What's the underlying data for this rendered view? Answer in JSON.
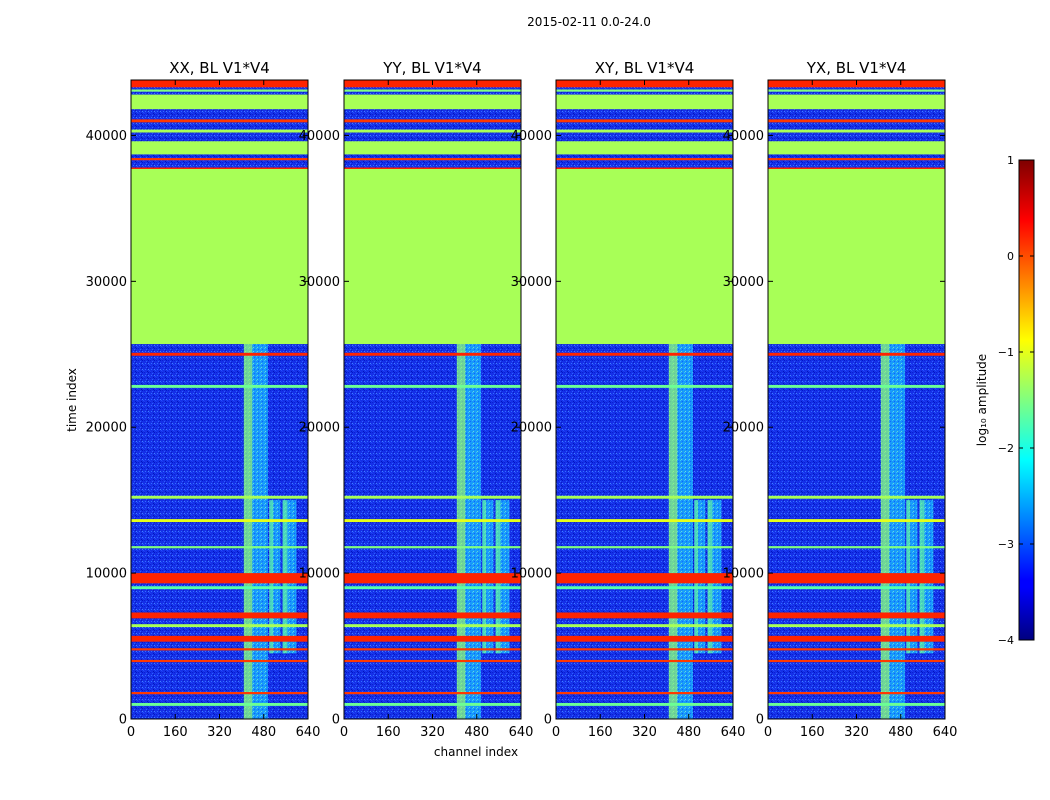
{
  "figure_title": "2015-02-11 0.0-24.0",
  "xlabel": "channel index",
  "ylabel": "time index",
  "colorbar": {
    "label": "log₁₀ amplitude",
    "range": [
      -4,
      1
    ],
    "ticks": [
      1,
      0,
      -1,
      -2,
      -3,
      -4
    ],
    "tick_labels": [
      "1",
      "0",
      "−1",
      "−2",
      "−3",
      "−4"
    ],
    "colormap": "jet"
  },
  "chart_data": {
    "type": "heatmap",
    "title": "2015-02-11 0.0-24.0",
    "xlabel": "channel index",
    "ylabel": "time index",
    "xlim": [
      0,
      640
    ],
    "ylim": [
      0,
      43800
    ],
    "x_ticks": [
      0,
      160,
      320,
      480,
      640
    ],
    "x_tick_labels": [
      "0",
      "160",
      "320",
      "480",
      "640"
    ],
    "y_ticks": [
      0,
      10000,
      20000,
      30000,
      40000
    ],
    "y_tick_labels": [
      "0",
      "10000",
      "20000",
      "30000",
      "40000"
    ],
    "value_label": "log10 amplitude",
    "value_range": [
      -4,
      1
    ],
    "panels": [
      {
        "title": "XX, BL V1*V4",
        "polarization": "XX",
        "baseline": "V1*V4"
      },
      {
        "title": "YY, BL V1*V4",
        "polarization": "YY",
        "baseline": "V1*V4"
      },
      {
        "title": "XY, BL V1*V4",
        "polarization": "XY",
        "baseline": "V1*V4"
      },
      {
        "title": "YX, BL V1*V4",
        "polarization": "YX",
        "baseline": "V1*V4"
      }
    ],
    "background_level": -3.0,
    "flagged_blocks": [
      {
        "t_start": 25700,
        "t_end": 37700,
        "level": -1.3
      },
      {
        "t_start": 38700,
        "t_end": 39600,
        "level": -1.3
      },
      {
        "t_start": 41800,
        "t_end": 42800,
        "level": -1.3
      }
    ],
    "horizontal_bands": [
      {
        "t_start": 9300,
        "t_end": 10000,
        "level": 0.2
      },
      {
        "t_start": 6900,
        "t_end": 7300,
        "level": 0.2
      },
      {
        "t_start": 5300,
        "t_end": 5700,
        "level": 0.2
      },
      {
        "t_start": 43300,
        "t_end": 43800,
        "level": 0.2
      },
      {
        "t_start": 37600,
        "t_end": 37800,
        "level": 0.2
      },
      {
        "t_start": 24900,
        "t_end": 25100,
        "level": 0.2
      },
      {
        "t_start": 22700,
        "t_end": 22900,
        "level": -1.6
      },
      {
        "t_start": 15100,
        "t_end": 15300,
        "level": -1.3
      },
      {
        "t_start": 13500,
        "t_end": 13700,
        "level": -1.0
      },
      {
        "t_start": 11700,
        "t_end": 11850,
        "level": -1.5
      },
      {
        "t_start": 8900,
        "t_end": 9100,
        "level": -1.7
      },
      {
        "t_start": 6300,
        "t_end": 6500,
        "level": -1.3
      },
      {
        "t_start": 4700,
        "t_end": 4850,
        "level": 0.1
      },
      {
        "t_start": 3900,
        "t_end": 4050,
        "level": 0.1
      },
      {
        "t_start": 1700,
        "t_end": 1850,
        "level": 0.1
      },
      {
        "t_start": 900,
        "t_end": 1100,
        "level": -1.6
      },
      {
        "t_start": 40900,
        "t_end": 41100,
        "level": 0.1
      },
      {
        "t_start": 40200,
        "t_end": 40400,
        "level": -1.3
      },
      {
        "t_start": 38300,
        "t_end": 38450,
        "level": 0.1
      },
      {
        "t_start": 43000,
        "t_end": 43150,
        "level": -1.5
      }
    ],
    "rfi_channel_ranges": [
      {
        "c_start": 408,
        "c_end": 495,
        "t_start": 0,
        "t_end": 25700,
        "level": -1.3
      },
      {
        "c_start": 500,
        "c_end": 540,
        "t_start": 4500,
        "t_end": 15000,
        "level": -1.6
      },
      {
        "c_start": 548,
        "c_end": 598,
        "t_start": 4500,
        "t_end": 15000,
        "level": -1.6
      }
    ]
  }
}
